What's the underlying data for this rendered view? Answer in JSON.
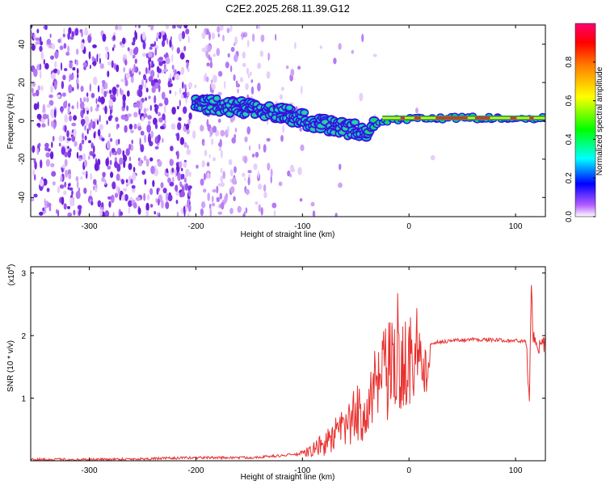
{
  "figure": {
    "title": "C2E2.2025.268.11.39.G12"
  },
  "chart_data": [
    {
      "type": "heatmap",
      "xlabel": "Height of straight line (km)",
      "ylabel": "Frequency (Hz)",
      "xlim": [
        -355,
        128
      ],
      "ylim": [
        -50,
        50
      ],
      "xticks": [
        -300,
        -200,
        -100,
        0,
        100
      ],
      "yticks": [
        -40,
        -20,
        0,
        20,
        40
      ],
      "colorbar": {
        "label": "Normalized spectral amplitude",
        "range": [
          0,
          1
        ],
        "ticks": [
          0.0,
          0.2,
          0.4,
          0.6,
          0.8
        ],
        "tick_labels": [
          "0.0",
          "0.2",
          "0.4",
          "0.6",
          "0.8"
        ]
      },
      "signal_track": [
        {
          "x": -200,
          "freq": 9,
          "amp": 0.45
        },
        {
          "x": -180,
          "freq": 8,
          "amp": 0.35
        },
        {
          "x": -160,
          "freq": 7,
          "amp": 0.3
        },
        {
          "x": -140,
          "freq": 6,
          "amp": 0.35
        },
        {
          "x": -120,
          "freq": 4,
          "amp": 0.45
        },
        {
          "x": -100,
          "freq": 1,
          "amp": 0.45
        },
        {
          "x": -80,
          "freq": -2,
          "amp": 0.45
        },
        {
          "x": -60,
          "freq": -4,
          "amp": 0.5
        },
        {
          "x": -40,
          "freq": -5,
          "amp": 0.5
        },
        {
          "x": -30,
          "freq": -1,
          "amp": 0.55
        },
        {
          "x": -10,
          "freq": 1,
          "amp": 0.6
        },
        {
          "x": 20,
          "freq": 1.5,
          "amp": 0.65
        },
        {
          "x": 60,
          "freq": 1.5,
          "amp": 0.7
        },
        {
          "x": 100,
          "freq": 1.5,
          "amp": 0.6
        },
        {
          "x": 128,
          "freq": 1.5,
          "amp": 0.55
        }
      ]
    },
    {
      "type": "line",
      "xlabel": "Height of straight line (km)",
      "ylabel": "SNR (10 * v/v)",
      "y_multiplier": "(x10",
      "y_multiplier_exp": "4",
      "y_multiplier_close": ")",
      "xlim": [
        -355,
        128
      ],
      "ylim": [
        0,
        3.1
      ],
      "xticks": [
        -300,
        -200,
        -100,
        0,
        100
      ],
      "yticks": [
        1,
        2,
        3
      ],
      "series": [
        {
          "color": "#e8302e",
          "x": [
            -355,
            -300,
            -250,
            -200,
            -150,
            -120,
            -100,
            -90,
            -80,
            -70,
            -60,
            -50,
            -40,
            -30,
            -20,
            -10,
            -5,
            0,
            5,
            10,
            20,
            30,
            40,
            60,
            80,
            100,
            110,
            113,
            115,
            116,
            118,
            128
          ],
          "y": [
            0.02,
            0.02,
            0.03,
            0.05,
            0.05,
            0.08,
            0.12,
            0.2,
            0.3,
            0.45,
            0.6,
            0.8,
            1.0,
            1.3,
            1.55,
            1.6,
            1.7,
            1.75,
            1.8,
            1.85,
            1.88,
            1.9,
            1.92,
            1.94,
            1.93,
            1.92,
            1.9,
            1.0,
            2.9,
            2.0,
            1.85,
            1.82
          ]
        }
      ]
    }
  ]
}
